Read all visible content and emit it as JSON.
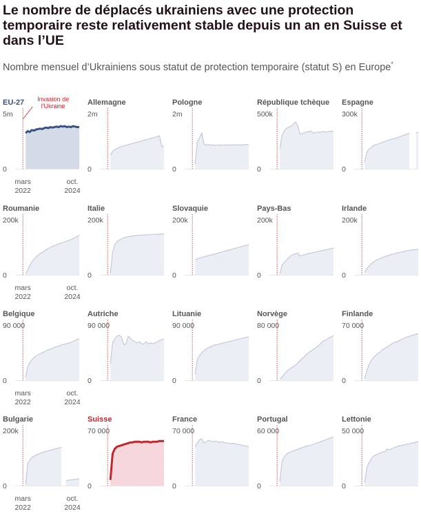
{
  "header": {
    "title": "Le nombre de déplacés ukrainiens avec une protection temporaire reste relativement stable depuis un an en Suisse et dans l’UE",
    "subtitle": "Nombre mensuel d’Ukrainiens sous statut de protection temporaire (statut S) en Europe",
    "footnote_marker": "*"
  },
  "colors": {
    "area": "#eceef5",
    "area_line": "#c5c8da",
    "eu_area": "#d4dbe6",
    "eu_line": "#3a5280",
    "ch_area": "#f6d8dc",
    "ch_line": "#c0262d",
    "invasion": "#c0262d",
    "axis": "#888888",
    "label": "#555555"
  },
  "annotation": {
    "line1": "Invasion de",
    "line2": "l'Ukraine"
  },
  "x_axis": {
    "start": "mars",
    "start_year": "2022",
    "end": "oct.",
    "end_year": "2024"
  },
  "chart_data": [
    {
      "type": "area",
      "title": "EU-27",
      "ymax_label": "5m",
      "zero_label": "0",
      "highlight": "eu",
      "y_max": 5000000,
      "values": [
        3.6,
        3.8,
        3.7,
        3.9,
        3.85,
        3.95,
        4.0,
        4.05,
        4.0,
        4.1,
        4.15,
        4.1,
        4.2,
        4.15,
        4.2,
        4.25,
        4.2,
        4.3,
        4.25,
        4.3,
        4.2,
        4.25,
        4.2,
        4.3,
        4.25,
        4.2,
        4.2
      ],
      "start_frac": 0.31,
      "scale": 1000000
    },
    {
      "type": "area",
      "title": "Allemagne",
      "ymax_label": "2m",
      "zero_label": "0",
      "y_max": 2000000,
      "values": [
        0.55,
        0.7,
        0.78,
        0.82,
        0.86,
        0.9,
        0.92,
        0.95,
        0.97,
        1.0,
        1.02,
        1.05,
        1.07,
        1.1,
        1.12,
        1.15,
        1.17,
        1.2,
        1.22,
        1.25,
        1.27,
        1.3,
        1.33,
        0.9,
        0.92
      ],
      "start_frac": 0.38,
      "scale": 1000000
    },
    {
      "type": "area",
      "title": "Pologne",
      "ymax_label": "2m",
      "zero_label": "0",
      "y_max": 2000000,
      "values": [
        0.2,
        1.1,
        1.25,
        1.45,
        1.0,
        0.95,
        0.98,
        0.95,
        0.96,
        0.95,
        0.95,
        0.96,
        0.95,
        0.95,
        0.96,
        0.96,
        0.95,
        0.96,
        0.96,
        0.96,
        0.96,
        0.96,
        0.97,
        0.98,
        0.98
      ],
      "start_frac": 0.26,
      "scale": 1000000
    },
    {
      "type": "area",
      "title": "République tchèque",
      "ymax_label": "500k",
      "zero_label": "0",
      "y_max": 500000,
      "values": [
        200,
        340,
        380,
        410,
        420,
        430,
        450,
        470,
        435,
        350,
        355,
        365,
        370,
        375,
        380,
        360,
        365,
        370,
        368,
        372,
        375,
        370,
        375,
        378,
        380
      ],
      "start_frac": 0.27,
      "scale": 1000
    },
    {
      "type": "area",
      "title": "Espagne",
      "ymax_label": "300k",
      "zero_label": "0",
      "y_max": 300000,
      "values": [
        40,
        100,
        120,
        130,
        140,
        145,
        150,
        155,
        160,
        165,
        170,
        175,
        178,
        182,
        186,
        190,
        195,
        200,
        205,
        210,
        214,
        null,
        null,
        218,
        220
      ],
      "start_frac": 0.15,
      "scale": 1000
    },
    {
      "type": "area",
      "title": "Roumanie",
      "ymax_label": "200k",
      "zero_label": "0",
      "y_max": 200000,
      "values": [
        5,
        20,
        40,
        55,
        65,
        75,
        82,
        88,
        93,
        100,
        105,
        110,
        115,
        118,
        122,
        125,
        128,
        131,
        135,
        138,
        141,
        145,
        150,
        155,
        160
      ],
      "start_frac": 0.27,
      "scale": 1000
    },
    {
      "type": "area",
      "title": "Italie",
      "ymax_label": "200k",
      "zero_label": "0",
      "y_max": 200000,
      "values": [
        5,
        90,
        120,
        135,
        140,
        145,
        150,
        152,
        154,
        155,
        157,
        158,
        159,
        160,
        160,
        161,
        161,
        162,
        162,
        163,
        163,
        164,
        164,
        165,
        165
      ],
      "start_frac": 0.33,
      "scale": 1000
    },
    {
      "type": "area",
      "title": "Slovaquie",
      "ymax_label": "200k",
      "zero_label": "0",
      "y_max": 200000,
      "values": [
        60,
        65,
        68,
        70,
        73,
        75,
        78,
        80,
        82,
        85,
        87,
        90,
        92,
        95,
        97,
        100,
        102,
        105,
        107,
        110,
        112,
        115,
        117,
        120,
        122
      ],
      "start_frac": 0.26,
      "scale": 1000
    },
    {
      "type": "area",
      "title": "Pays-Bas",
      "ymax_label": "200k",
      "zero_label": "0",
      "y_max": 200000,
      "values": [
        5,
        40,
        50,
        60,
        70,
        78,
        82,
        85,
        88,
        76,
        78,
        82,
        84,
        86,
        88,
        90,
        92,
        94,
        96,
        98,
        100,
        102,
        104,
        106,
        108
      ],
      "start_frac": 0.27,
      "scale": 1000
    },
    {
      "type": "area",
      "title": "Irlande",
      "ymax_label": "200k",
      "zero_label": "0",
      "y_max": 200000,
      "values": [
        10,
        25,
        35,
        45,
        52,
        58,
        62,
        66,
        70,
        73,
        76,
        79,
        82,
        85,
        87,
        89,
        91,
        93,
        95,
        97,
        99,
        100,
        101,
        102,
        103
      ],
      "start_frac": 0.15,
      "scale": 1000
    },
    {
      "type": "area",
      "title": "Belgique",
      "ymax_label": "90 000",
      "zero_label": "0",
      "y_max": 90000,
      "values": [
        5,
        25,
        33,
        38,
        42,
        45,
        47,
        49,
        51,
        53,
        55,
        56,
        58,
        60,
        61,
        62,
        64,
        65,
        66,
        67,
        68,
        70,
        72,
        74,
        75
      ],
      "start_frac": 0.27,
      "scale": 1000
    },
    {
      "type": "area",
      "title": "Autriche",
      "ymax_label": "90 000",
      "zero_label": "0",
      "y_max": 90000,
      "values": [
        30,
        68,
        75,
        80,
        82,
        78,
        65,
        66,
        80,
        76,
        72,
        70,
        68,
        70,
        66,
        66,
        70,
        66,
        68,
        66,
        68,
        70,
        72,
        74,
        75
      ],
      "start_frac": 0.36,
      "scale": 1000
    },
    {
      "type": "area",
      "title": "Lituanie",
      "ymax_label": "90 000",
      "zero_label": "0",
      "y_max": 90000,
      "values": [
        10,
        38,
        45,
        50,
        54,
        57,
        59,
        61,
        63,
        64,
        65,
        66,
        67,
        68,
        69,
        70,
        71,
        72,
        73,
        74,
        75,
        76,
        77,
        78,
        79
      ],
      "start_frac": 0.27,
      "scale": 1000
    },
    {
      "type": "area",
      "title": "Norvège",
      "ymax_label": "80 000",
      "zero_label": "0",
      "y_max": 80000,
      "values": [
        2,
        5,
        10,
        14,
        17,
        20,
        22,
        24,
        28,
        32,
        35,
        38,
        42,
        45,
        47,
        50,
        52,
        55,
        58,
        62,
        64,
        66,
        68,
        70,
        72
      ],
      "start_frac": 0.27,
      "scale": 1000
    },
    {
      "type": "area",
      "title": "Finlande",
      "ymax_label": "70 000",
      "zero_label": "0",
      "y_max": 70000,
      "values": [
        2,
        14,
        22,
        28,
        32,
        35,
        38,
        40,
        43,
        45,
        47,
        49,
        51,
        53,
        54,
        55,
        57,
        58,
        60,
        61,
        62,
        63,
        64,
        65,
        66
      ],
      "start_frac": 0.27,
      "scale": 1000
    },
    {
      "type": "area",
      "title": "Bulgarie",
      "ymax_label": "200k",
      "zero_label": "0",
      "y_max": 200000,
      "values": [
        5,
        90,
        105,
        115,
        120,
        125,
        128,
        132,
        135,
        138,
        140,
        143,
        145,
        148,
        150,
        152,
        155,
        null,
        20,
        22,
        23,
        24,
        25,
        26,
        28
      ],
      "start_frac": 0.27,
      "scale": 1000
    },
    {
      "type": "area",
      "title": "Suisse",
      "ymax_label": "70 000",
      "zero_label": "0",
      "highlight": "ch",
      "y_max": 70000,
      "values": [
        8,
        45,
        52,
        55,
        56,
        57,
        58,
        59,
        60,
        61,
        61,
        62,
        62,
        62,
        61,
        62,
        62,
        62,
        61,
        62,
        62,
        62,
        63,
        63,
        63
      ],
      "start_frac": 0.26,
      "scale": 1000
    },
    {
      "type": "area",
      "title": "France",
      "ymax_label": "70 000",
      "zero_label": "0",
      "y_max": 70000,
      "values": [
        55,
        60,
        65,
        66,
        60,
        62,
        64,
        63,
        62,
        63,
        62,
        61,
        62,
        61,
        60,
        60,
        59,
        60,
        59,
        58,
        58,
        57,
        56,
        56,
        55
      ],
      "start_frac": 0.27,
      "scale": 1000
    },
    {
      "type": "area",
      "title": "Portugal",
      "ymax_label": "60 000",
      "zero_label": "0",
      "y_max": 60000,
      "values": [
        5,
        30,
        35,
        38,
        40,
        41,
        42,
        43,
        44,
        45,
        46,
        47,
        48,
        48,
        49,
        50,
        51,
        52,
        53,
        54,
        55,
        56,
        57,
        58,
        59
      ],
      "start_frac": 0.27,
      "scale": 1000
    },
    {
      "type": "area",
      "title": "Lettonie",
      "ymax_label": "50 000",
      "zero_label": "0",
      "y_max": 50000,
      "values": [
        3,
        18,
        23,
        27,
        30,
        31,
        32,
        33,
        34,
        34,
        37,
        36,
        37,
        38,
        39,
        40,
        40,
        41,
        41,
        42,
        42,
        43,
        43,
        44,
        44
      ],
      "start_frac": 0.27,
      "scale": 1000
    }
  ]
}
